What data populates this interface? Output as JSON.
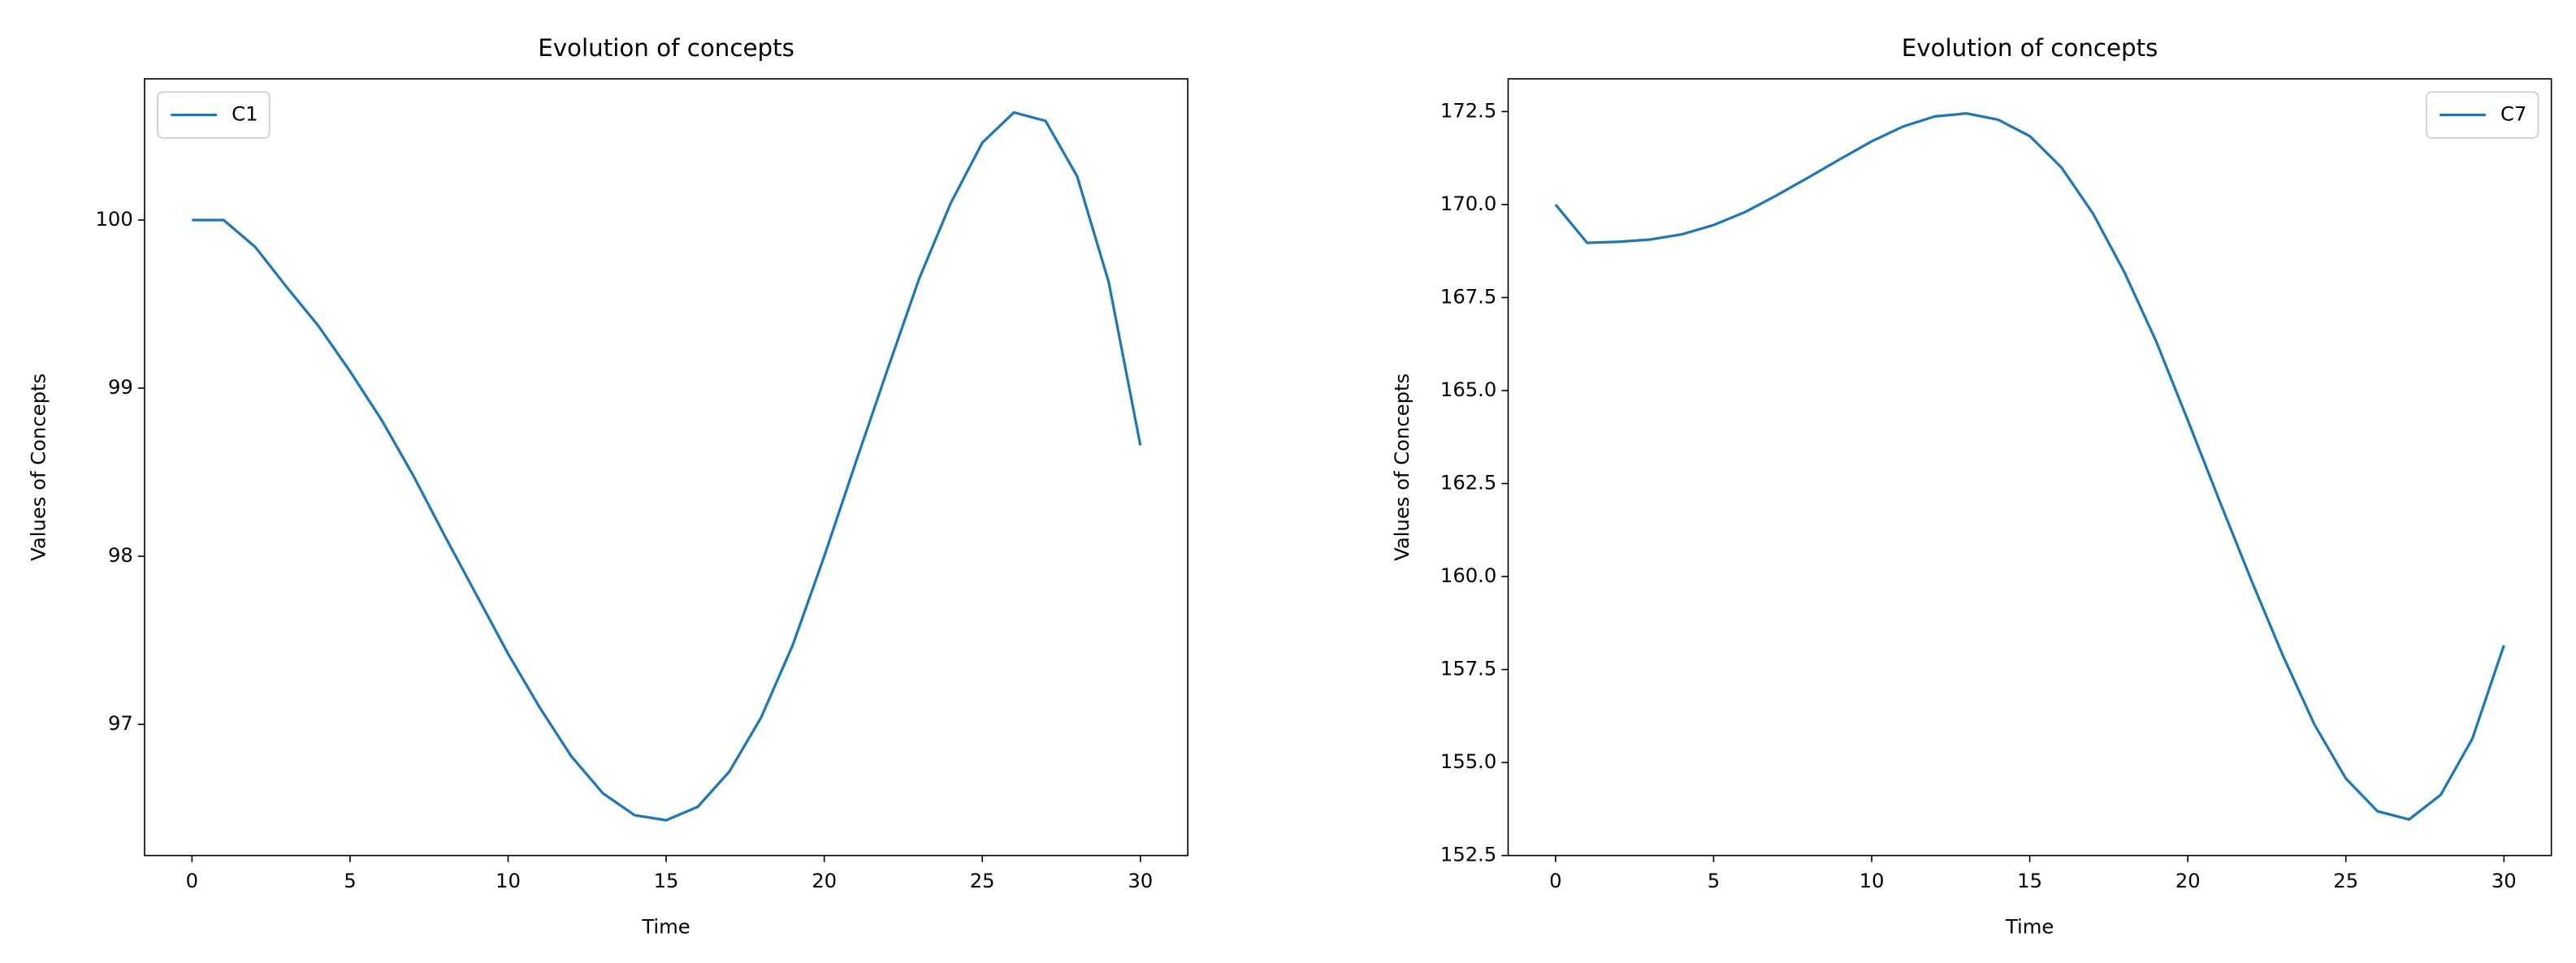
{
  "chart_data": [
    {
      "type": "line",
      "title": "Evolution of concepts",
      "x_label": "Time",
      "y_label": "Values of Concepts",
      "x": [
        0,
        1,
        2,
        3,
        4,
        5,
        6,
        7,
        8,
        9,
        10,
        11,
        12,
        13,
        14,
        15,
        16,
        17,
        18,
        19,
        20,
        21,
        22,
        23,
        24,
        25,
        26,
        27,
        28,
        29,
        30
      ],
      "series": [
        {
          "name": "C1",
          "color": "#1f77b4",
          "values": [
            100,
            100,
            99.84,
            99.6,
            99.37,
            99.1,
            98.81,
            98.48,
            98.12,
            97.77,
            97.42,
            97.1,
            96.81,
            96.59,
            96.46,
            96.43,
            96.51,
            96.72,
            97.04,
            97.47,
            98.0,
            98.56,
            99.11,
            99.65,
            100.1,
            100.46,
            100.64,
            100.59,
            100.26,
            99.63,
            98.66
          ]
        }
      ],
      "xlim": [
        -1.5,
        31.5
      ],
      "xticks": [
        0,
        5,
        10,
        15,
        20,
        25,
        30
      ],
      "ylim": [
        96.22,
        100.84
      ],
      "yticks": [
        97,
        98,
        99,
        100
      ],
      "legend": "upper left"
    },
    {
      "type": "line",
      "title": "Evolution of concepts",
      "x_label": "Time",
      "y_label": "Values of Concepts",
      "x": [
        0,
        1,
        2,
        3,
        4,
        5,
        6,
        7,
        8,
        9,
        10,
        11,
        12,
        13,
        14,
        15,
        16,
        17,
        18,
        19,
        20,
        21,
        22,
        23,
        24,
        25,
        26,
        27,
        28,
        29,
        30
      ],
      "series": [
        {
          "name": "C7",
          "color": "#1f77b4",
          "values": [
            170.0,
            168.97,
            169.0,
            169.06,
            169.2,
            169.45,
            169.8,
            170.25,
            170.73,
            171.22,
            171.7,
            172.1,
            172.37,
            172.45,
            172.28,
            171.84,
            171.0,
            169.76,
            168.17,
            166.32,
            164.2,
            162.04,
            159.92,
            157.89,
            156.03,
            154.57,
            153.69,
            153.47,
            154.13,
            155.64,
            158.15
          ]
        }
      ],
      "xlim": [
        -1.5,
        31.5
      ],
      "xticks": [
        0,
        5,
        10,
        15,
        20,
        25,
        30
      ],
      "ylim": [
        152.5,
        173.38
      ],
      "yticks": [
        152.5,
        {
          "value": 155,
          "label": "155.0"
        },
        157.5,
        {
          "value": 160,
          "label": "160.0"
        },
        162.5,
        {
          "value": 165,
          "label": "165.0"
        },
        167.5,
        {
          "value": 170,
          "label": "170.0"
        },
        172.5
      ],
      "legend": "upper right"
    }
  ]
}
